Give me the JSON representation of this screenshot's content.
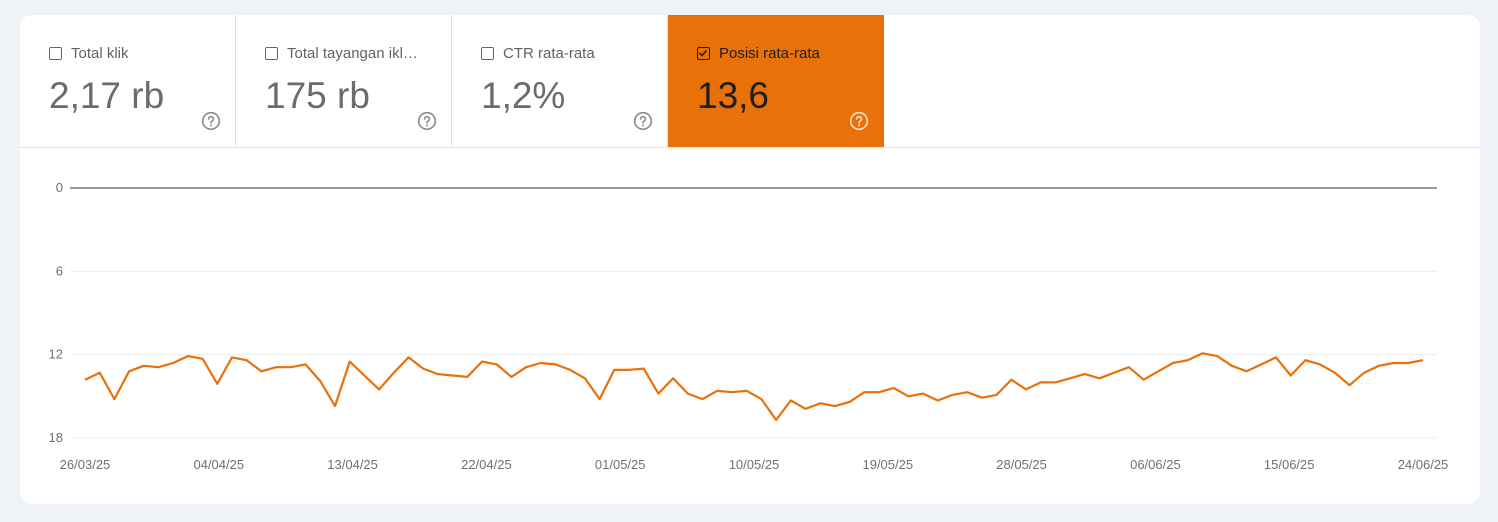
{
  "metrics": [
    {
      "label": "Total klik",
      "value": "2,17 rb",
      "checked": false,
      "icon": "help-icon"
    },
    {
      "label": "Total tayangan ikl…",
      "value": "175 rb",
      "checked": false,
      "icon": "help-icon"
    },
    {
      "label": "CTR rata-rata",
      "value": "1,2%",
      "checked": false,
      "icon": "help-icon"
    },
    {
      "label": "Posisi rata-rata",
      "value": "13,6",
      "checked": true,
      "icon": "help-icon"
    }
  ],
  "colors": {
    "accent": "#e8710a",
    "line": "#e8710a"
  },
  "chart_data": {
    "type": "line",
    "title": "",
    "xlabel": "",
    "ylabel": "",
    "y_reversed": true,
    "ylim": [
      0,
      18
    ],
    "yticks": [
      "0",
      "6",
      "12",
      "18"
    ],
    "xticks": [
      "26/03/25",
      "04/04/25",
      "13/04/25",
      "22/04/25",
      "01/05/25",
      "10/05/25",
      "19/05/25",
      "28/05/25",
      "06/06/25",
      "15/06/25",
      "24/06/25"
    ],
    "x_start": "26/03/25",
    "x_end": "24/06/25",
    "series": [
      {
        "color": "#e8710a",
        "values": [
          13.8,
          13.3,
          15.2,
          13.2,
          12.8,
          12.9,
          12.6,
          12.1,
          12.3,
          14.1,
          12.2,
          12.4,
          13.2,
          12.9,
          12.9,
          12.7,
          13.9,
          15.7,
          12.5,
          13.5,
          14.5,
          13.3,
          12.2,
          13.0,
          13.4,
          13.5,
          13.6,
          12.5,
          12.7,
          13.6,
          12.9,
          12.6,
          12.7,
          13.1,
          13.7,
          15.2,
          13.1,
          13.1,
          13.0,
          14.8,
          13.7,
          14.8,
          15.2,
          14.6,
          14.7,
          14.6,
          15.2,
          16.7,
          15.3,
          15.9,
          15.5,
          15.7,
          15.4,
          14.7,
          14.7,
          14.4,
          15.0,
          14.8,
          15.3,
          14.9,
          14.7,
          15.1,
          14.9,
          13.8,
          14.5,
          14.0,
          14.0,
          13.7,
          13.4,
          13.7,
          13.3,
          12.9,
          13.8,
          13.2,
          12.6,
          12.4,
          11.9,
          12.1,
          12.8,
          13.2,
          12.7,
          12.2,
          13.5,
          12.4,
          12.7,
          13.3,
          14.2,
          13.3,
          12.8,
          12.6,
          12.6,
          12.4
        ]
      }
    ]
  }
}
